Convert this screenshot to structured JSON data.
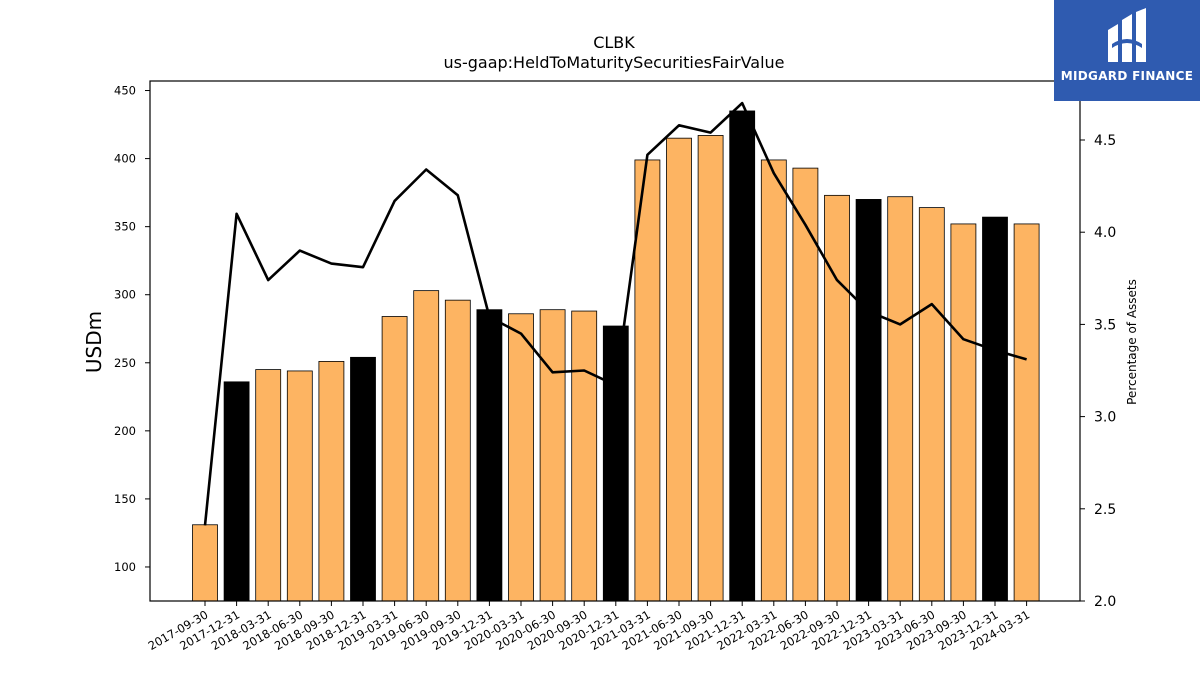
{
  "logo": {
    "text": "MIDGARD FINANCE"
  },
  "chart_data": {
    "type": "bar",
    "title": "CLBK",
    "subtitle": "us-gaap:HeldToMaturitySecuritiesFairValue",
    "ylabel": "USDm",
    "ylabel_right": "Percentage of Assets",
    "ylim": [
      75,
      457
    ],
    "ylim_right": [
      2.0,
      4.82
    ],
    "yticks": [
      100,
      150,
      200,
      250,
      300,
      350,
      400,
      450
    ],
    "yticks_right": [
      2.0,
      2.5,
      3.0,
      3.5,
      4.0,
      4.5
    ],
    "grid": false,
    "colors": {
      "bar": "#fdb462",
      "bar_highlight": "#000000",
      "line": "#000000"
    },
    "categories": [
      "2017-09-30",
      "2017-12-31",
      "2018-03-31",
      "2018-06-30",
      "2018-09-30",
      "2018-12-31",
      "2019-03-31",
      "2019-06-30",
      "2019-09-30",
      "2019-12-31",
      "2020-03-31",
      "2020-06-30",
      "2020-09-30",
      "2020-12-31",
      "2021-03-31",
      "2021-06-30",
      "2021-09-30",
      "2021-12-31",
      "2022-03-31",
      "2022-06-30",
      "2022-09-30",
      "2022-12-31",
      "2023-03-31",
      "2023-06-30",
      "2023-09-30",
      "2023-12-31",
      "2024-03-31"
    ],
    "highlight": [
      false,
      true,
      false,
      false,
      false,
      true,
      false,
      false,
      false,
      true,
      false,
      false,
      false,
      true,
      false,
      false,
      false,
      true,
      false,
      false,
      false,
      true,
      false,
      false,
      false,
      true,
      false
    ],
    "series": [
      {
        "values": [
          131,
          236,
          245,
          244,
          251,
          254,
          284,
          303,
          296,
          289,
          286,
          289,
          288,
          277,
          399,
          415,
          417,
          435,
          399,
          393,
          373,
          370,
          372,
          364,
          352,
          357,
          352
        ]
      },
      {
        "axis": "right",
        "values": [
          2.41,
          4.1,
          3.74,
          3.9,
          3.83,
          3.81,
          4.17,
          4.34,
          4.2,
          3.54,
          3.45,
          3.24,
          3.25,
          3.17,
          4.42,
          4.58,
          4.54,
          4.7,
          4.32,
          4.04,
          3.74,
          3.57,
          3.5,
          3.61,
          3.42,
          3.36,
          3.31
        ]
      }
    ]
  }
}
